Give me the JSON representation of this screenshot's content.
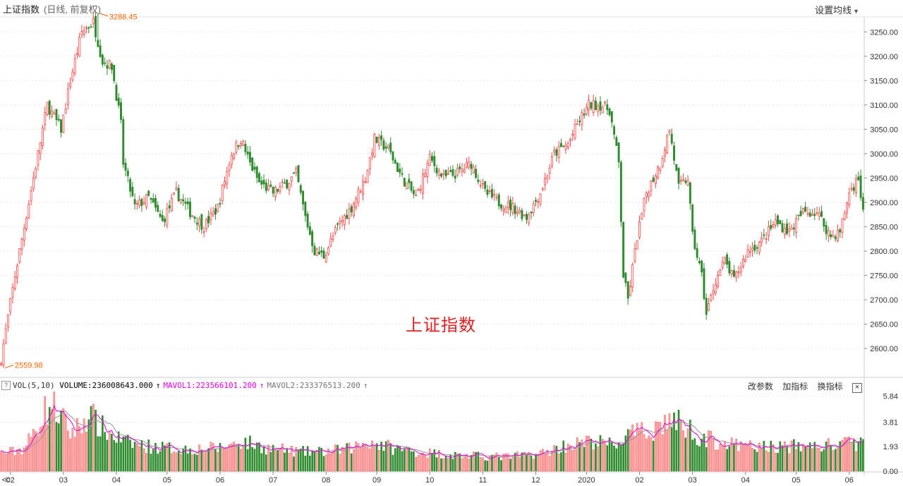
{
  "header": {
    "title": "上证指数",
    "subtitle": "(日线, 前复权)",
    "ma_setting_label": "设置均线"
  },
  "watermark": "上证指数",
  "volume_panel": {
    "help_label": "?",
    "vol_label": "VOL(5,10)",
    "volume_text": "VOLUME:236008643.000",
    "mavol1_text": "MAVOL1:223566101.200",
    "mavol2_text": "MAVOL2:233376513.200",
    "arrow": "↑",
    "actions": [
      "改参数",
      "加指标",
      "换指标"
    ],
    "close_label": "×",
    "y_ticks": [
      "5.84",
      "3.81",
      "1.93",
      "0.00"
    ]
  },
  "scroll_left_label": "≪",
  "colors": {
    "up": "#f04848",
    "up_fill": "#ffb0b0",
    "down": "#2e8b2e",
    "mavol1": "#e000e0",
    "mavol2": "#999999",
    "annotation": "#ff6600",
    "watermark": "#e02020"
  },
  "chart_data": {
    "type": "candlestick",
    "title": "上证指数",
    "price_axis": {
      "ticks": [
        2600,
        2650,
        2700,
        2750,
        2800,
        2850,
        2900,
        2950,
        3000,
        3050,
        3100,
        3150,
        3200,
        3250
      ],
      "tick_labels": [
        "2600.00",
        "2650.00",
        "2700.00",
        "2750.00",
        "2800.00",
        "2850.00",
        "2900.00",
        "2950.00",
        "3000.00",
        "3050.00",
        "3100.00",
        "3150.00",
        "3200.00",
        "3250.00"
      ]
    },
    "x_tick_labels": [
      "02",
      "03",
      "04",
      "05",
      "06",
      "07",
      "08",
      "09",
      "10",
      "11",
      "12",
      "2020",
      "02",
      "03",
      "04",
      "05",
      "06"
    ],
    "annotations": [
      {
        "label": "3288.45",
        "value": 3288.45,
        "type": "high"
      },
      {
        "label": "2559.98",
        "value": 2559.98,
        "type": "low"
      }
    ],
    "close_path": [
      [
        0,
        2580
      ],
      [
        6,
        2750
      ],
      [
        14,
        2950
      ],
      [
        20,
        3100
      ],
      [
        26,
        3050
      ],
      [
        30,
        3150
      ],
      [
        35,
        3250
      ],
      [
        40,
        3270
      ],
      [
        44,
        3190
      ],
      [
        48,
        3180
      ],
      [
        52,
        3060
      ],
      [
        53,
        2980
      ],
      [
        58,
        2890
      ],
      [
        64,
        2910
      ],
      [
        70,
        2860
      ],
      [
        76,
        2920
      ],
      [
        82,
        2880
      ],
      [
        88,
        2850
      ],
      [
        94,
        2890
      ],
      [
        100,
        3000
      ],
      [
        104,
        3030
      ],
      [
        108,
        2980
      ],
      [
        112,
        2940
      ],
      [
        118,
        2920
      ],
      [
        124,
        2940
      ],
      [
        128,
        2960
      ],
      [
        132,
        2870
      ],
      [
        136,
        2800
      ],
      [
        140,
        2790
      ],
      [
        146,
        2850
      ],
      [
        152,
        2890
      ],
      [
        158,
        2950
      ],
      [
        162,
        3030
      ],
      [
        168,
        3010
      ],
      [
        174,
        2950
      ],
      [
        180,
        2910
      ],
      [
        186,
        2990
      ],
      [
        192,
        2950
      ],
      [
        198,
        2960
      ],
      [
        204,
        2980
      ],
      [
        210,
        2920
      ],
      [
        216,
        2900
      ],
      [
        222,
        2890
      ],
      [
        228,
        2870
      ],
      [
        234,
        2920
      ],
      [
        240,
        3000
      ],
      [
        246,
        3020
      ],
      [
        250,
        3060
      ],
      [
        255,
        3100
      ],
      [
        260,
        3100
      ],
      [
        264,
        3090
      ],
      [
        268,
        2980
      ],
      [
        270,
        2750
      ],
      [
        272,
        2700
      ],
      [
        276,
        2830
      ],
      [
        280,
        2920
      ],
      [
        286,
        2980
      ],
      [
        290,
        3050
      ],
      [
        294,
        2930
      ],
      [
        298,
        2950
      ],
      [
        300,
        2830
      ],
      [
        304,
        2750
      ],
      [
        306,
        2670
      ],
      [
        310,
        2740
      ],
      [
        314,
        2780
      ],
      [
        318,
        2740
      ],
      [
        324,
        2800
      ],
      [
        330,
        2820
      ],
      [
        336,
        2860
      ],
      [
        342,
        2840
      ],
      [
        348,
        2880
      ],
      [
        354,
        2880
      ],
      [
        360,
        2830
      ],
      [
        364,
        2840
      ],
      [
        368,
        2920
      ],
      [
        372,
        2950
      ],
      [
        374,
        2880
      ]
    ],
    "days_shown": 375,
    "volume_axis": {
      "ticks": [
        0,
        1.93,
        3.81,
        5.84
      ],
      "unit": "亿"
    },
    "series": [
      {
        "name": "VOLUME",
        "last": 236008643.0
      },
      {
        "name": "MAVOL1",
        "last": 223566101.2
      },
      {
        "name": "MAVOL2",
        "last": 233376513.2
      }
    ],
    "volume_profile_billions": [
      [
        0,
        1.4
      ],
      [
        5,
        1.5
      ],
      [
        10,
        1.8
      ],
      [
        14,
        2.9
      ],
      [
        18,
        4.5
      ],
      [
        22,
        5.2
      ],
      [
        26,
        4.2
      ],
      [
        30,
        3.0
      ],
      [
        35,
        3.6
      ],
      [
        38,
        4.6
      ],
      [
        42,
        3.6
      ],
      [
        48,
        2.8
      ],
      [
        55,
        2.2
      ],
      [
        65,
        1.9
      ],
      [
        80,
        1.7
      ],
      [
        95,
        1.8
      ],
      [
        105,
        2.3
      ],
      [
        115,
        1.8
      ],
      [
        130,
        1.5
      ],
      [
        140,
        1.5
      ],
      [
        150,
        1.7
      ],
      [
        160,
        2.3
      ],
      [
        170,
        1.8
      ],
      [
        180,
        1.5
      ],
      [
        200,
        1.2
      ],
      [
        220,
        1.1
      ],
      [
        235,
        1.4
      ],
      [
        245,
        2.0
      ],
      [
        258,
        2.3
      ],
      [
        266,
        2.0
      ],
      [
        272,
        2.8
      ],
      [
        280,
        3.0
      ],
      [
        290,
        4.0
      ],
      [
        296,
        3.6
      ],
      [
        304,
        2.6
      ],
      [
        320,
        1.9
      ],
      [
        340,
        1.9
      ],
      [
        360,
        2.0
      ],
      [
        374,
        2.2
      ]
    ]
  }
}
